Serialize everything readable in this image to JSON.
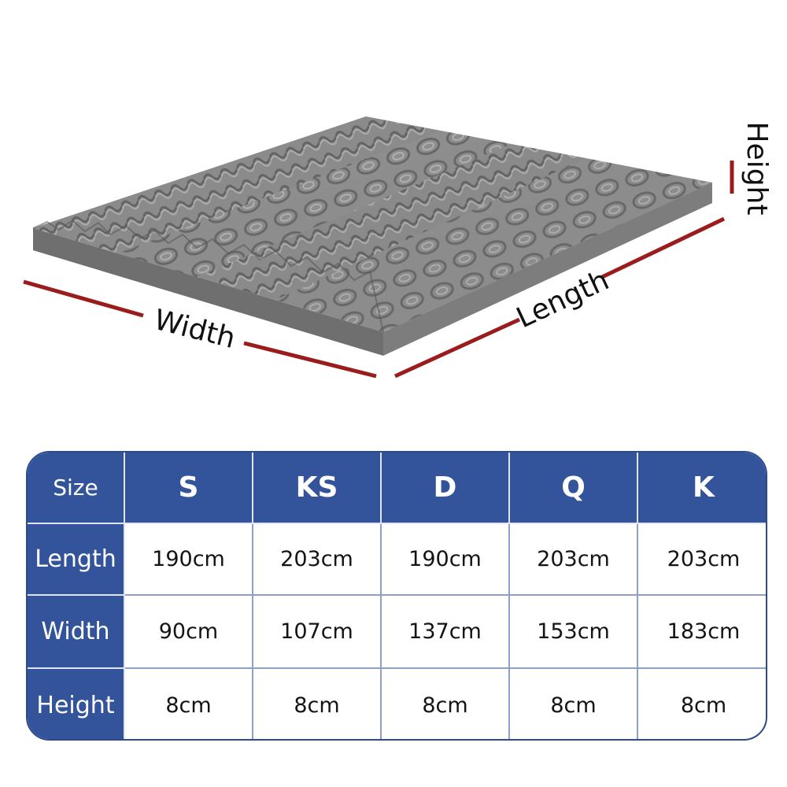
{
  "diagram": {
    "labels": {
      "width": "Width",
      "length": "Length",
      "height": "Height"
    },
    "colors": {
      "dimension_line": "#9b1c1c",
      "foam": "#8e8e8e",
      "foam_shadow": "#5f5f5f",
      "foam_highlight": "#b4b4b4"
    }
  },
  "size_table": {
    "corner_label": "Size",
    "columns": [
      "S",
      "KS",
      "D",
      "Q",
      "K"
    ],
    "rows": [
      {
        "label": "Length",
        "values": [
          "190cm",
          "203cm",
          "190cm",
          "203cm",
          "203cm"
        ]
      },
      {
        "label": "Width",
        "values": [
          "90cm",
          "107cm",
          "137cm",
          "153cm",
          "183cm"
        ]
      },
      {
        "label": "Height",
        "values": [
          "8cm",
          "8cm",
          "8cm",
          "8cm",
          "8cm"
        ]
      }
    ],
    "colors": {
      "header_bg": "#33549a",
      "header_text": "#ffffff",
      "body_text": "#141414"
    }
  }
}
